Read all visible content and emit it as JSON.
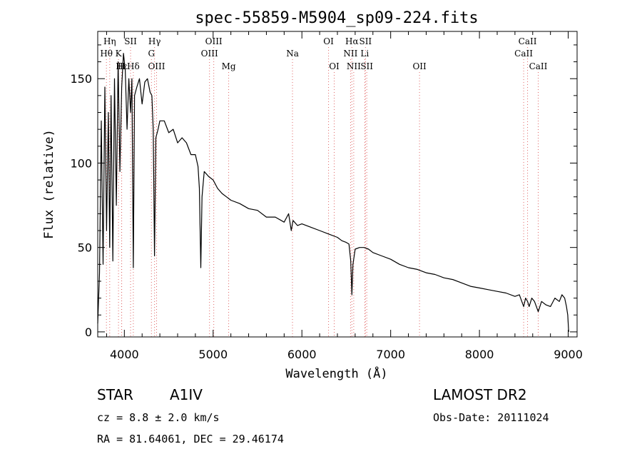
{
  "chart_data": {
    "type": "line",
    "title": "spec-55859-M5904_sp09-224.fits",
    "xlabel": "Wavelength (Å)",
    "ylabel": "Flux (relative)",
    "xlim": [
      3700,
      9100
    ],
    "ylim": [
      -3,
      178
    ],
    "xticks": [
      4000,
      5000,
      6000,
      7000,
      8000,
      9000
    ],
    "yticks": [
      0,
      50,
      100,
      150
    ],
    "grid": false,
    "line_color": "#000000",
    "marker_color": "#e06666",
    "series": [
      {
        "x": [
          3700,
          3720,
          3740,
          3760,
          3780,
          3800,
          3820,
          3835,
          3850,
          3870,
          3889,
          3910,
          3930,
          3950,
          3970,
          3990,
          4010,
          4030,
          4050,
          4070,
          4085,
          4101,
          4115,
          4140,
          4170,
          4200,
          4230,
          4260,
          4290,
          4310,
          4325,
          4340,
          4355,
          4380,
          4400,
          4450,
          4500,
          4550,
          4600,
          4650,
          4700,
          4750,
          4800,
          4830,
          4845,
          4861,
          4875,
          4900,
          4950,
          5000,
          5050,
          5100,
          5150,
          5200,
          5300,
          5400,
          5500,
          5600,
          5700,
          5800,
          5850,
          5880,
          5900,
          5950,
          6000,
          6100,
          6200,
          6300,
          6400,
          6450,
          6500,
          6530,
          6550,
          6563,
          6575,
          6600,
          6650,
          6700,
          6750,
          6800,
          6900,
          7000,
          7100,
          7200,
          7300,
          7400,
          7500,
          7600,
          7700,
          7800,
          7900,
          8000,
          8100,
          8200,
          8300,
          8400,
          8450,
          8498,
          8520,
          8542,
          8560,
          8590,
          8620,
          8662,
          8700,
          8750,
          8800,
          8850,
          8900,
          8930,
          8960,
          8980,
          8995,
          9005
        ],
        "y": [
          5,
          35,
          125,
          40,
          145,
          60,
          130,
          50,
          140,
          42,
          150,
          75,
          160,
          95,
          145,
          165,
          155,
          120,
          150,
          130,
          150,
          38,
          140,
          145,
          150,
          135,
          148,
          150,
          142,
          140,
          120,
          45,
          115,
          120,
          125,
          125,
          118,
          120,
          112,
          115,
          112,
          105,
          105,
          98,
          85,
          38,
          80,
          95,
          92,
          90,
          85,
          82,
          80,
          78,
          76,
          73,
          72,
          68,
          68,
          65,
          70,
          60,
          66,
          63,
          64,
          62,
          60,
          58,
          56,
          54,
          53,
          52,
          42,
          22,
          40,
          49,
          50,
          50,
          49,
          47,
          45,
          43,
          40,
          38,
          37,
          35,
          34,
          32,
          31,
          29,
          27,
          26,
          25,
          24,
          23,
          21,
          22,
          15,
          20,
          18,
          15,
          20,
          18,
          12,
          18,
          16,
          15,
          20,
          18,
          22,
          20,
          15,
          10,
          0
        ]
      }
    ],
    "lines": [
      {
        "label": "Hη",
        "x": 3835,
        "row": 0
      },
      {
        "label": "Hθ",
        "x": 3798,
        "row": 1
      },
      {
        "label": "Hε",
        "x": 3970,
        "row": 2
      },
      {
        "label": "K",
        "x": 3934,
        "row": 1
      },
      {
        "label": "H",
        "x": 3969,
        "row": 2
      },
      {
        "label": "SII",
        "x": 4070,
        "row": 0
      },
      {
        "label": "Hδ",
        "x": 4101,
        "row": 2
      },
      {
        "label": "Hγ",
        "x": 4340,
        "row": 0
      },
      {
        "label": "G",
        "x": 4305,
        "row": 1
      },
      {
        "label": "OIII",
        "x": 4363,
        "row": 2
      },
      {
        "label": "OIII",
        "x": 5007,
        "row": 0
      },
      {
        "label": "OIII",
        "x": 4959,
        "row": 1
      },
      {
        "label": "Mg",
        "x": 5175,
        "row": 2
      },
      {
        "label": "Na",
        "x": 5894,
        "row": 1
      },
      {
        "label": "OI",
        "x": 6300,
        "row": 0
      },
      {
        "label": "OI",
        "x": 6364,
        "row": 2
      },
      {
        "label": "Hα",
        "x": 6563,
        "row": 0
      },
      {
        "label": "SII",
        "x": 6716,
        "row": 0
      },
      {
        "label": "NII",
        "x": 6548,
        "row": 1
      },
      {
        "label": "Li",
        "x": 6708,
        "row": 1
      },
      {
        "label": "NII",
        "x": 6584,
        "row": 2
      },
      {
        "label": "SII",
        "x": 6731,
        "row": 2
      },
      {
        "label": "OII",
        "x": 7325,
        "row": 2
      },
      {
        "label": "CaII",
        "x": 8542,
        "row": 0
      },
      {
        "label": "CaII",
        "x": 8498,
        "row": 1
      },
      {
        "label": "CaII",
        "x": 8662,
        "row": 2
      }
    ]
  },
  "info": {
    "object_class": "STAR",
    "subclass": "A1IV",
    "survey": "LAMOST DR2",
    "cz": "cz = 8.8 ± 2.0 km/s",
    "obs_date": "Obs-Date: 20111024",
    "coords": "RA =  81.64061, DEC =  29.46174"
  }
}
